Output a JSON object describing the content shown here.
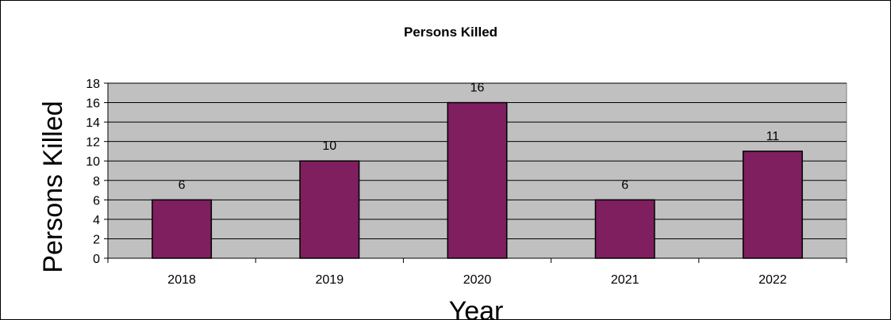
{
  "chart_data": {
    "type": "bar",
    "title": "Persons Killed",
    "xlabel": "Year",
    "ylabel": "Persons Killed",
    "categories": [
      "2018",
      "2019",
      "2020",
      "2021",
      "2022"
    ],
    "values": [
      6,
      10,
      16,
      6,
      11
    ],
    "data_labels": [
      "6",
      "10",
      "16",
      "6",
      "11"
    ],
    "ylim": [
      0,
      18
    ],
    "yticks": [
      "0",
      "2",
      "4",
      "6",
      "8",
      "10",
      "12",
      "14",
      "16",
      "18"
    ],
    "grid": true,
    "legend": "none",
    "colors": {
      "bar": "#7f1f5f",
      "plot_background": "#c0c0c0",
      "gridline": "#000000"
    }
  }
}
